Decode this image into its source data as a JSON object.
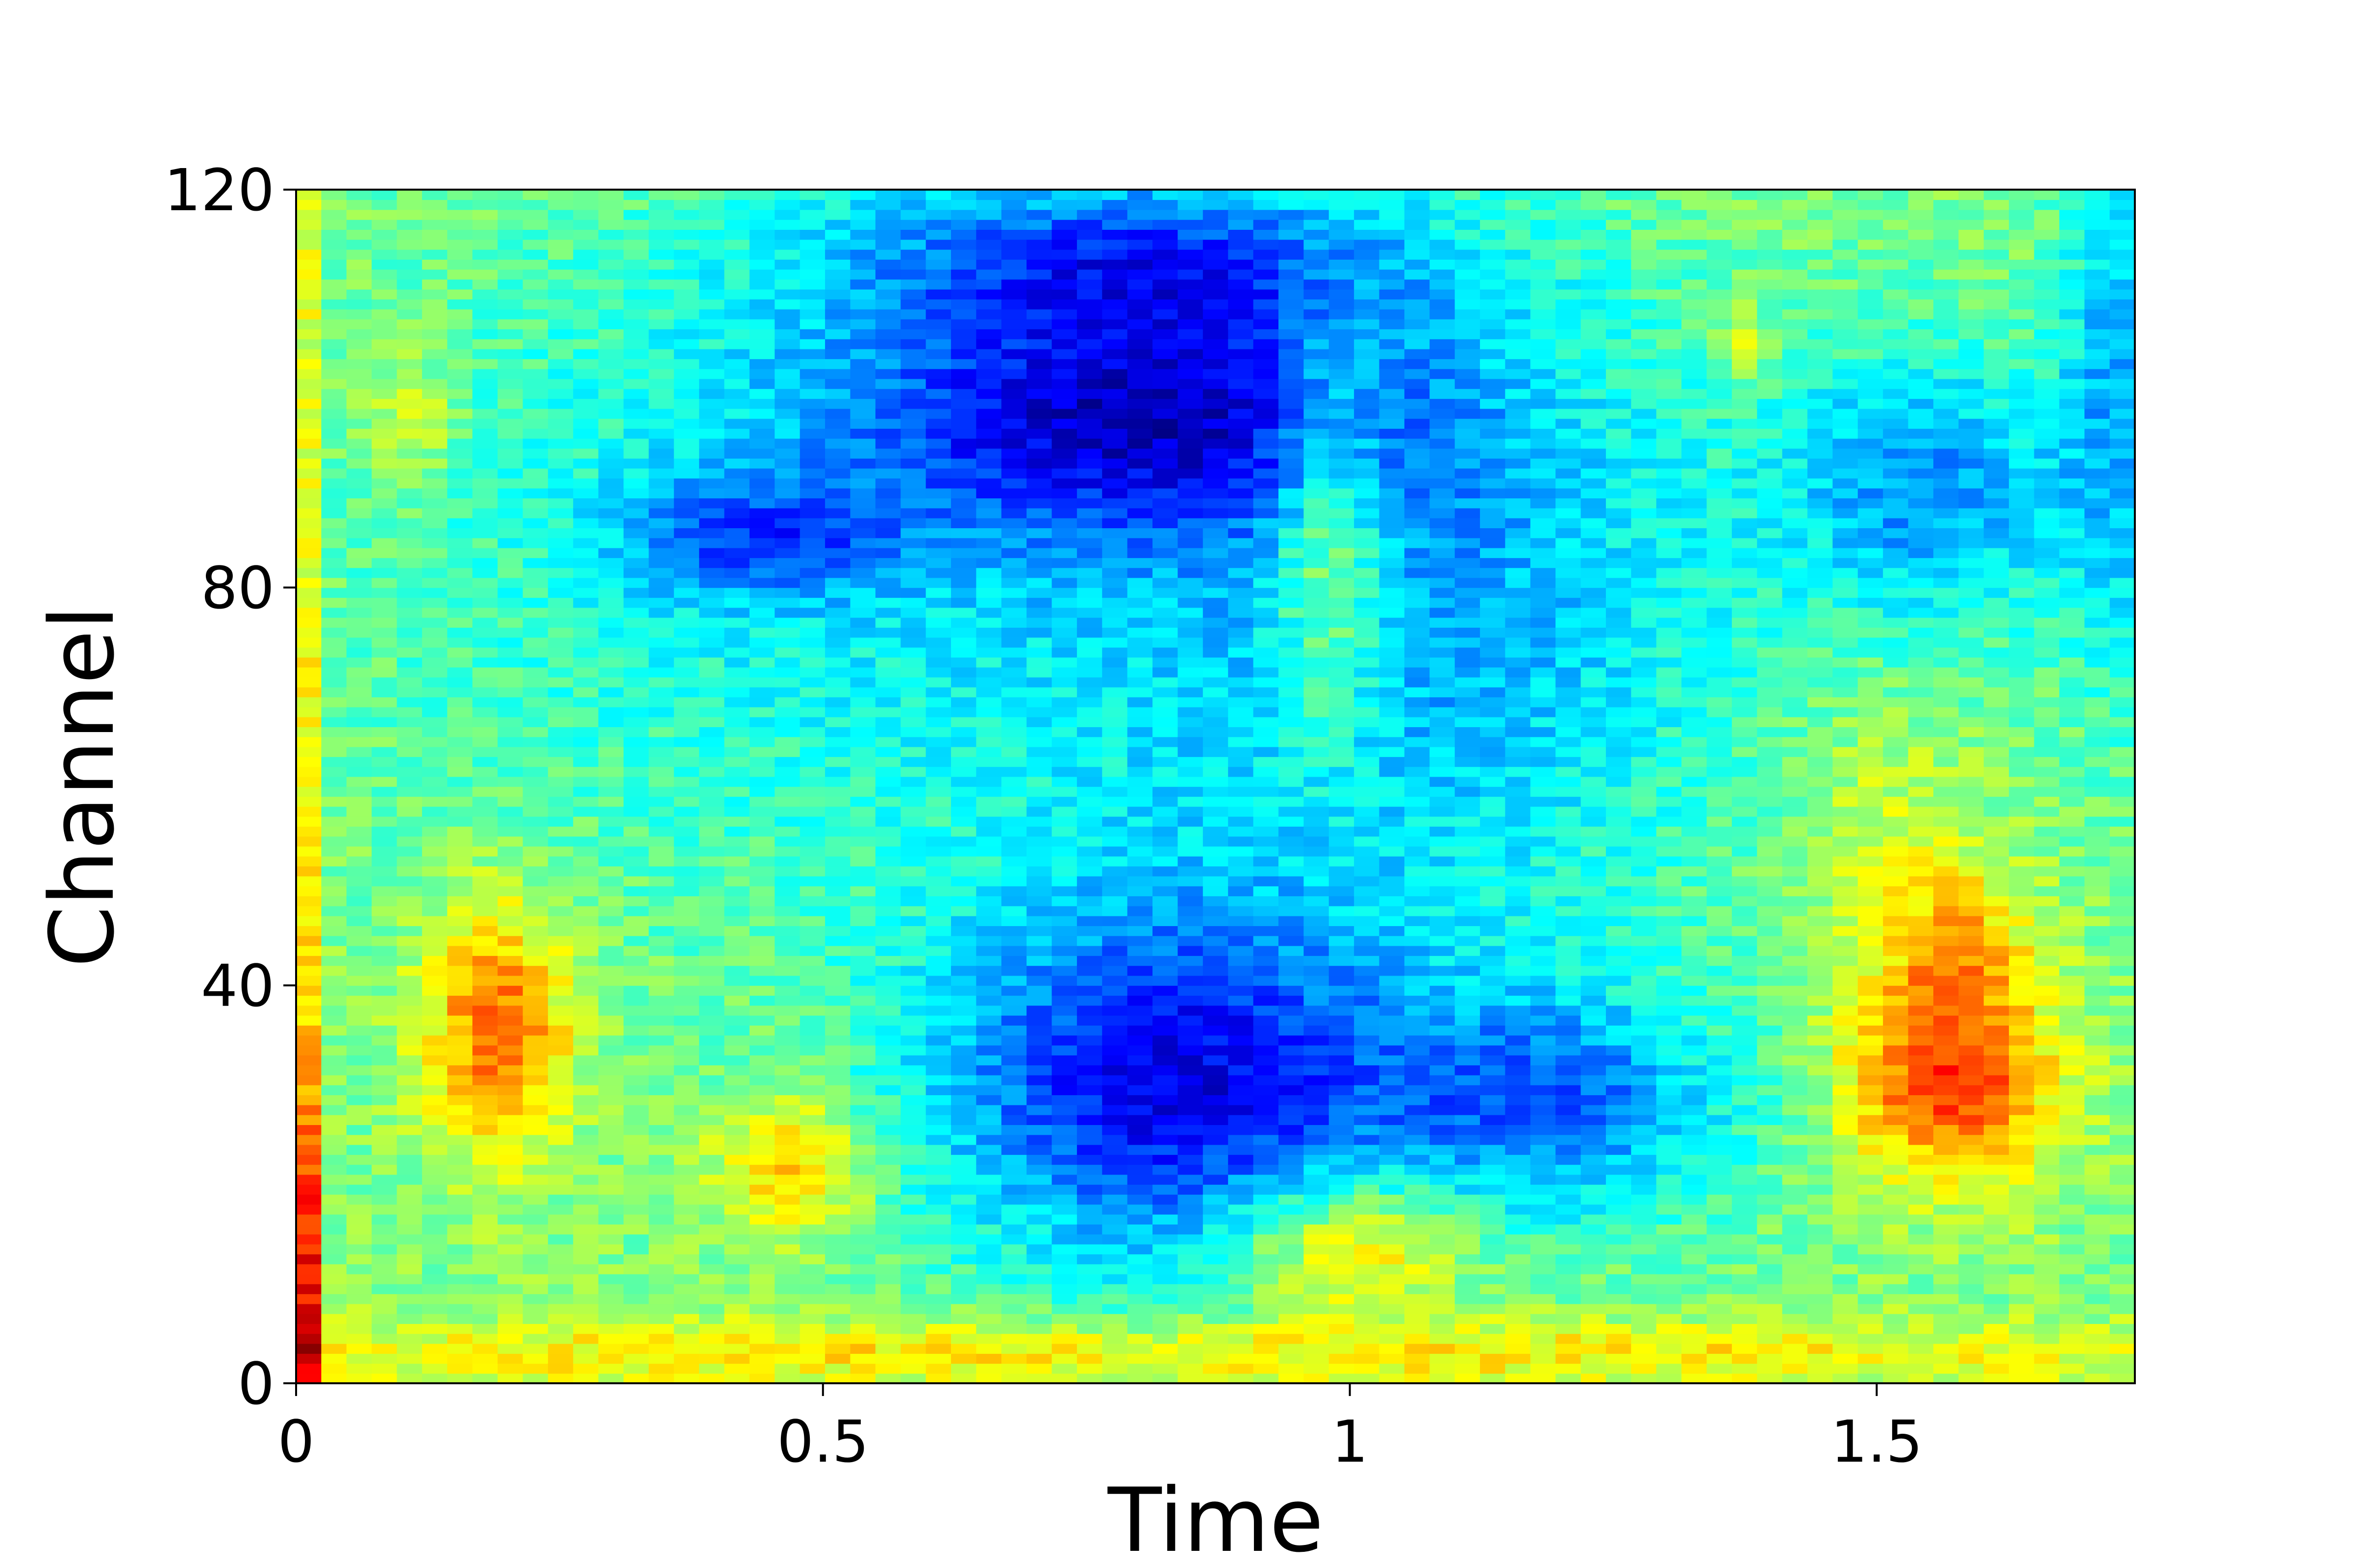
{
  "chart_data": {
    "type": "heatmap",
    "title": "",
    "xlabel": "Time",
    "ylabel": "Channel",
    "xlim": [
      0,
      1.745
    ],
    "ylim": [
      0,
      120
    ],
    "xticks": [
      0,
      0.5,
      1,
      1.5
    ],
    "xtick_labels": [
      "0",
      "0.5",
      "1",
      "1.5"
    ],
    "yticks": [
      0,
      40,
      80,
      120
    ],
    "ytick_labels": [
      "0",
      "40",
      "80",
      "120"
    ],
    "colormap": "jet",
    "grid": false,
    "legend": "none",
    "n_time_bins": 73,
    "n_channels": 120,
    "value_range": [
      0,
      1
    ],
    "features": [
      {
        "t": 0.0,
        "c": 10,
        "st": 0.012,
        "sc": 14,
        "a": 0.42
      },
      {
        "t": 0.0,
        "c": 60,
        "st": 0.014,
        "sc": 60,
        "a": 0.22
      },
      {
        "t": 0.19,
        "c": 36,
        "st": 0.05,
        "sc": 9,
        "a": 0.28
      },
      {
        "t": 0.47,
        "c": 22,
        "st": 0.05,
        "sc": 5,
        "a": 0.2
      },
      {
        "t": 0.11,
        "c": 97,
        "st": 0.03,
        "sc": 5,
        "a": 0.12
      },
      {
        "t": 0.83,
        "c": 30,
        "st": 0.16,
        "sc": 13,
        "a": -0.38
      },
      {
        "t": 0.8,
        "c": 97,
        "st": 0.2,
        "sc": 8,
        "a": -0.3
      },
      {
        "t": 0.8,
        "c": 113,
        "st": 0.2,
        "sc": 6,
        "a": -0.26
      },
      {
        "t": 0.6,
        "c": 85,
        "st": 0.35,
        "sc": 25,
        "a": -0.14
      },
      {
        "t": 0.43,
        "c": 85,
        "st": 0.09,
        "sc": 4,
        "a": -0.2
      },
      {
        "t": 1.2,
        "c": 28,
        "st": 0.12,
        "sc": 8,
        "a": -0.25
      },
      {
        "t": 1.1,
        "c": 75,
        "st": 0.2,
        "sc": 22,
        "a": -0.16
      },
      {
        "t": 1.55,
        "c": 90,
        "st": 0.1,
        "sc": 10,
        "a": -0.22
      },
      {
        "t": 1.73,
        "c": 100,
        "st": 0.04,
        "sc": 22,
        "a": -0.18
      },
      {
        "t": 0.98,
        "c": 85,
        "st": 0.04,
        "sc": 14,
        "a": 0.22
      },
      {
        "t": 1.57,
        "c": 30,
        "st": 0.07,
        "sc": 7,
        "a": 0.32
      },
      {
        "t": 1.58,
        "c": 44,
        "st": 0.05,
        "sc": 6,
        "a": 0.18
      },
      {
        "t": 1.37,
        "c": 105,
        "st": 0.02,
        "sc": 3,
        "a": 0.12
      },
      {
        "t": 0.8,
        "c": 3,
        "st": 0.9,
        "sc": 2.5,
        "a": 0.16
      },
      {
        "t": 1.0,
        "c": 14,
        "st": 0.08,
        "sc": 5,
        "a": 0.22
      },
      {
        "t": 1.5,
        "c": 55,
        "st": 0.06,
        "sc": 12,
        "a": 0.08
      }
    ],
    "baseline": 0.5,
    "noise": 0.06,
    "seed": 7
  }
}
